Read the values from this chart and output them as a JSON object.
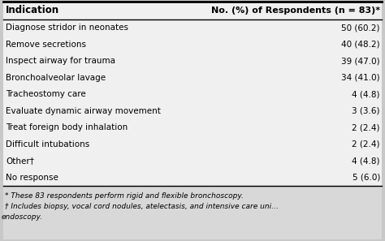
{
  "header_col1": "Indication",
  "header_col2": "No. (%) of Respondents (n = 83)*",
  "rows": [
    [
      "Diagnose stridor in neonates",
      "50 (60.2)"
    ],
    [
      "Remove secretions",
      "40 (48.2)"
    ],
    [
      "Inspect airway for trauma",
      "39 (47.0)"
    ],
    [
      "Bronchoalveolar lavage",
      "34 (41.0)"
    ],
    [
      "Tracheostomy care",
      "4 (4.8)"
    ],
    [
      "Evaluate dynamic airway movement",
      "3 (3.6)"
    ],
    [
      "Treat foreign body inhalation",
      "2 (2.4)"
    ],
    [
      "Difficult intubations",
      "2 (2.4)"
    ],
    [
      "Other†",
      "4 (4.8)"
    ],
    [
      "No response",
      "5 (6.0)"
    ]
  ],
  "footnote1": "* These 83 respondents perform rigid and flexible bronchoscopy.",
  "footnote2": "† Includes biopsy, vocal cord nodules, atelectasis, and intensive care uni…",
  "footnote3": "endoscopy.",
  "outer_bg": "#c8c8c8",
  "table_bg": "#f0f0f0",
  "footnote_bg": "#d8d8d8",
  "line_color": "#000000",
  "text_color": "#000000",
  "font_size": 7.5,
  "header_font_size": 8.5
}
